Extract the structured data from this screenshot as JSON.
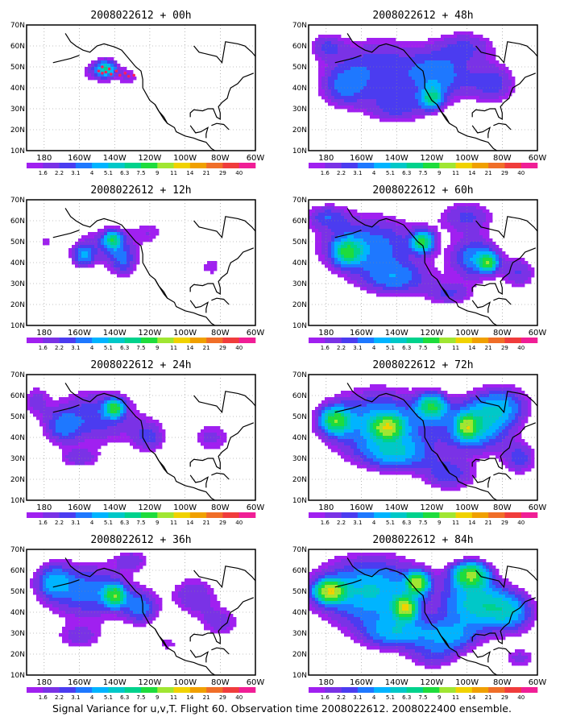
{
  "figure": {
    "caption": "Signal Variance for u,v,T. Flight 60. Observation time 2008022612. 2008022400 ensemble."
  },
  "colorbar": {
    "labels": [
      "1.6",
      "2.2",
      "3.1",
      "4",
      "5.1",
      "6.3",
      "7.5",
      "9",
      "11",
      "14",
      "21",
      "29",
      "40"
    ],
    "colors": [
      "#a020f0",
      "#7a32e6",
      "#4b3cf0",
      "#1e78ff",
      "#00b4ff",
      "#00c8c8",
      "#00d28c",
      "#1edc3c",
      "#a0e632",
      "#f0d200",
      "#f0a000",
      "#f06e28",
      "#f03c3c",
      "#f01e96"
    ]
  },
  "axes": {
    "x_ticks": [
      "180",
      "160W",
      "140W",
      "120W",
      "100W",
      "80W",
      "60W"
    ],
    "y_ticks": [
      "10N",
      "20N",
      "30N",
      "40N",
      "50N",
      "60N",
      "70N"
    ]
  },
  "chart_data": [
    {
      "type": "heatmap",
      "title": "2008022612 + 00h",
      "lead_hours": 0,
      "xlim": [
        -190,
        -60
      ],
      "ylim": [
        10,
        70
      ],
      "blobs": [
        [
          -150,
          48,
          14,
          7,
          2
        ],
        [
          -145,
          49,
          6,
          4,
          6
        ],
        [
          -132,
          45,
          6,
          5,
          2
        ],
        [
          -104,
          47,
          3,
          3,
          1.5
        ],
        [
          -100,
          34,
          4,
          3,
          1.3
        ],
        [
          -172,
          44,
          6,
          5,
          1.4
        ]
      ],
      "track": [
        [
          -147,
          50
        ],
        [
          -143,
          49
        ],
        [
          -139,
          48
        ],
        [
          -134,
          47
        ],
        [
          -129,
          46
        ],
        [
          -147,
          47
        ],
        [
          -142,
          46.5
        ],
        [
          -137,
          46
        ],
        [
          -132,
          45.5
        ],
        [
          -149,
          48
        ],
        [
          -145,
          47.5
        ]
      ]
    },
    {
      "type": "heatmap",
      "title": "2008022612 + 12h",
      "lead_hours": 12,
      "xlim": [
        -190,
        -60
      ],
      "ylim": [
        10,
        70
      ],
      "blobs": [
        [
          -145,
          48,
          20,
          10,
          2.8
        ],
        [
          -141,
          51,
          5,
          4,
          6.5
        ],
        [
          -158,
          43,
          6,
          5,
          4
        ],
        [
          -135,
          40,
          8,
          8,
          3
        ],
        [
          -120,
          55,
          10,
          6,
          1.8
        ],
        [
          -85,
          38,
          8,
          6,
          2
        ],
        [
          -180,
          50,
          8,
          6,
          1.6
        ],
        [
          -110,
          30,
          10,
          4,
          1.3
        ]
      ]
    },
    {
      "type": "heatmap",
      "title": "2008022612 + 24h",
      "lead_hours": 24,
      "xlim": [
        -190,
        -60
      ],
      "ylim": [
        10,
        70
      ],
      "blobs": [
        [
          -150,
          50,
          25,
          14,
          3.8
        ],
        [
          -140,
          54,
          5,
          4,
          8
        ],
        [
          -170,
          45,
          10,
          8,
          3.2
        ],
        [
          -120,
          40,
          10,
          8,
          3
        ],
        [
          -85,
          40,
          12,
          8,
          2.5
        ],
        [
          -160,
          30,
          12,
          5,
          2.5
        ],
        [
          -185,
          58,
          8,
          8,
          2.2
        ],
        [
          -100,
          55,
          10,
          6,
          1.5
        ]
      ]
    },
    {
      "type": "heatmap",
      "title": "2008022612 + 36h",
      "lead_hours": 36,
      "xlim": [
        -190,
        -60
      ],
      "ylim": [
        10,
        70
      ],
      "blobs": [
        [
          -155,
          50,
          25,
          14,
          4.5
        ],
        [
          -140,
          48,
          6,
          5,
          8
        ],
        [
          -175,
          55,
          10,
          8,
          4
        ],
        [
          -125,
          42,
          10,
          8,
          4
        ],
        [
          -95,
          48,
          14,
          10,
          3
        ],
        [
          -80,
          35,
          12,
          8,
          2.6
        ],
        [
          -160,
          28,
          14,
          6,
          2.4
        ],
        [
          -110,
          25,
          10,
          6,
          1.8
        ],
        [
          -130,
          65,
          10,
          5,
          2.5
        ]
      ]
    },
    {
      "type": "heatmap",
      "title": "2008022612 + 48h",
      "lead_hours": 48,
      "xlim": [
        -190,
        -60
      ],
      "ylim": [
        10,
        70
      ],
      "blobs": [
        [
          -150,
          50,
          30,
          15,
          3.6
        ],
        [
          -115,
          45,
          18,
          12,
          4
        ],
        [
          -120,
          35,
          6,
          5,
          6
        ],
        [
          -170,
          40,
          14,
          10,
          3.2
        ],
        [
          -85,
          42,
          14,
          10,
          3.5
        ],
        [
          -140,
          30,
          18,
          8,
          3
        ],
        [
          -100,
          60,
          18,
          8,
          2.8
        ],
        [
          -180,
          60,
          10,
          6,
          2.6
        ]
      ]
    },
    {
      "type": "heatmap",
      "title": "2008022612 + 60h",
      "lead_hours": 60,
      "xlim": [
        -190,
        -60
      ],
      "ylim": [
        10,
        70
      ],
      "blobs": [
        [
          -155,
          48,
          30,
          15,
          4.6
        ],
        [
          -125,
          50,
          6,
          5,
          8
        ],
        [
          -168,
          45,
          8,
          6,
          6.5
        ],
        [
          -95,
          42,
          14,
          10,
          5
        ],
        [
          -88,
          40,
          5,
          4,
          7.5
        ],
        [
          -140,
          32,
          20,
          8,
          3.8
        ],
        [
          -110,
          25,
          14,
          6,
          3
        ],
        [
          -180,
          62,
          12,
          6,
          3
        ],
        [
          -100,
          62,
          16,
          8,
          3.2
        ],
        [
          -70,
          35,
          10,
          8,
          3
        ]
      ]
    },
    {
      "type": "heatmap",
      "title": "2008022612 + 72h",
      "lead_hours": 72,
      "xlim": [
        -190,
        -60
      ],
      "ylim": [
        10,
        70
      ],
      "blobs": [
        [
          -150,
          47,
          32,
          16,
          5.5
        ],
        [
          -145,
          45,
          8,
          5,
          9
        ],
        [
          -175,
          48,
          8,
          6,
          8
        ],
        [
          -120,
          55,
          8,
          6,
          7.5
        ],
        [
          -95,
          45,
          18,
          12,
          6
        ],
        [
          -100,
          45,
          5,
          5,
          8
        ],
        [
          -140,
          32,
          20,
          8,
          4.5
        ],
        [
          -110,
          22,
          16,
          8,
          3.5
        ],
        [
          -80,
          55,
          16,
          10,
          4.5
        ],
        [
          -70,
          30,
          10,
          8,
          3.5
        ]
      ]
    },
    {
      "type": "heatmap",
      "title": "2008022612 + 84h",
      "lead_hours": 84,
      "xlim": [
        -190,
        -60
      ],
      "ylim": [
        10,
        70
      ],
      "blobs": [
        [
          -155,
          50,
          32,
          16,
          6.5
        ],
        [
          -178,
          50,
          8,
          5,
          11
        ],
        [
          -135,
          42,
          6,
          5,
          11
        ],
        [
          -128,
          54,
          6,
          5,
          10
        ],
        [
          -98,
          58,
          10,
          6,
          10
        ],
        [
          -95,
          44,
          18,
          12,
          6.5
        ],
        [
          -140,
          30,
          20,
          8,
          5
        ],
        [
          -110,
          28,
          16,
          8,
          4.5
        ],
        [
          -75,
          40,
          14,
          10,
          5
        ],
        [
          -120,
          18,
          14,
          6,
          2.5
        ],
        [
          -70,
          18,
          10,
          5,
          2.5
        ]
      ]
    }
  ]
}
